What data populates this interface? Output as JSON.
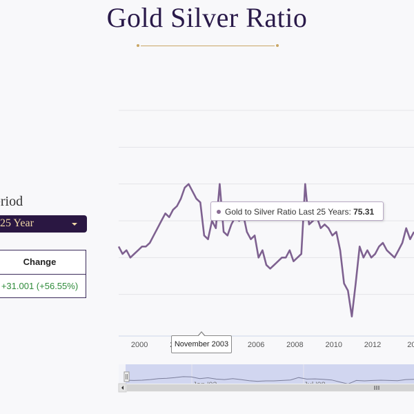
{
  "title": "Gold Silver Ratio",
  "period": {
    "label": "eriod",
    "selected": "25 Year"
  },
  "change": {
    "header": "Change",
    "value": "+31.001 (+56.55%)"
  },
  "tooltip": {
    "series": "Gold to Silver Ratio Last 25 Years:",
    "value": "75.31"
  },
  "crosshair_label": "November 2003",
  "navigator": {
    "labels": [
      "Jan '03",
      "Jul '08"
    ]
  },
  "colors": {
    "line": "#7e6190",
    "accent": "#2a1742",
    "gold": "#c9a664",
    "gain": "#2e8b3a"
  },
  "chart_data": {
    "type": "line",
    "x_ticks": [
      "2000",
      "2002",
      "2004",
      "2006",
      "2008",
      "2010",
      "2012",
      "20"
    ],
    "grid": true,
    "series": [
      {
        "name": "Gold to Silver Ratio Last 25 Years",
        "x": [
          1999.0,
          1999.2,
          1999.4,
          1999.6,
          1999.8,
          2000.0,
          2000.2,
          2000.4,
          2000.6,
          2000.8,
          2001.0,
          2001.2,
          2001.4,
          2001.6,
          2001.8,
          2002.0,
          2002.2,
          2002.4,
          2002.6,
          2002.8,
          2003.0,
          2003.2,
          2003.4,
          2003.6,
          2003.8,
          2004.0,
          2004.2,
          2004.4,
          2004.6,
          2004.8,
          2005.0,
          2005.2,
          2005.4,
          2005.6,
          2005.8,
          2006.0,
          2006.2,
          2006.4,
          2006.6,
          2006.8,
          2007.0,
          2007.2,
          2007.4,
          2007.6,
          2007.8,
          2008.0,
          2008.2,
          2008.4,
          2008.6,
          2008.8,
          2009.0,
          2009.2,
          2009.4,
          2009.6,
          2009.8,
          2010.0,
          2010.2,
          2010.4,
          2010.6,
          2010.8,
          2011.0,
          2011.2,
          2011.4,
          2011.6,
          2011.8,
          2012.0,
          2012.2,
          2012.4,
          2012.6,
          2012.8,
          2013.0,
          2013.2,
          2013.4,
          2013.6,
          2013.8,
          2014.0,
          2014.2
        ],
        "y": [
          63,
          61,
          62,
          60,
          61,
          62,
          63,
          63,
          64,
          66,
          68,
          70,
          72,
          71,
          73,
          74,
          76,
          79,
          80,
          78,
          76,
          75,
          66,
          65,
          70,
          68,
          80,
          67,
          66,
          69,
          71,
          70,
          72,
          67,
          65,
          66,
          60,
          62,
          58,
          57,
          58,
          59,
          60,
          60,
          62,
          59,
          60,
          61,
          80,
          69,
          70,
          71,
          68,
          69,
          68,
          66,
          67,
          62,
          53,
          51,
          44,
          53,
          63,
          60,
          62,
          60,
          61,
          63,
          64,
          62,
          61,
          60,
          62,
          64,
          68,
          65,
          67
        ],
        "tooltip_value": 75.31
      }
    ],
    "navigator_series": [
      63,
      62,
      63,
      66,
      70,
      72,
      75,
      79,
      78,
      70,
      74,
      68,
      66,
      70,
      66,
      61,
      58,
      60,
      60,
      62,
      64,
      75,
      68,
      69,
      67,
      64,
      55,
      46,
      62,
      60,
      62,
      63,
      62,
      61,
      66,
      67
    ]
  }
}
